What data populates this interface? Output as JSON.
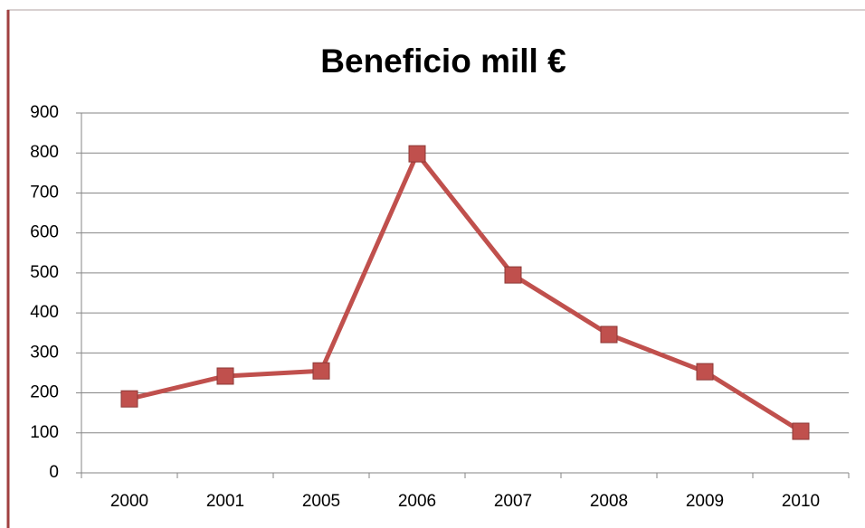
{
  "chart_data": {
    "type": "line",
    "title": "Beneficio mill €",
    "categories": [
      "2000",
      "2001",
      "2005",
      "2006",
      "2007",
      "2008",
      "2009",
      "2010"
    ],
    "series": [
      {
        "name": "Beneficio mill €",
        "color": "#c0504d",
        "values": [
          185,
          242,
          255,
          798,
          495,
          346,
          253,
          104
        ]
      }
    ],
    "ylim": [
      0,
      900
    ],
    "yticks": [
      0,
      100,
      200,
      300,
      400,
      500,
      600,
      700,
      800,
      900
    ],
    "grid": true
  }
}
